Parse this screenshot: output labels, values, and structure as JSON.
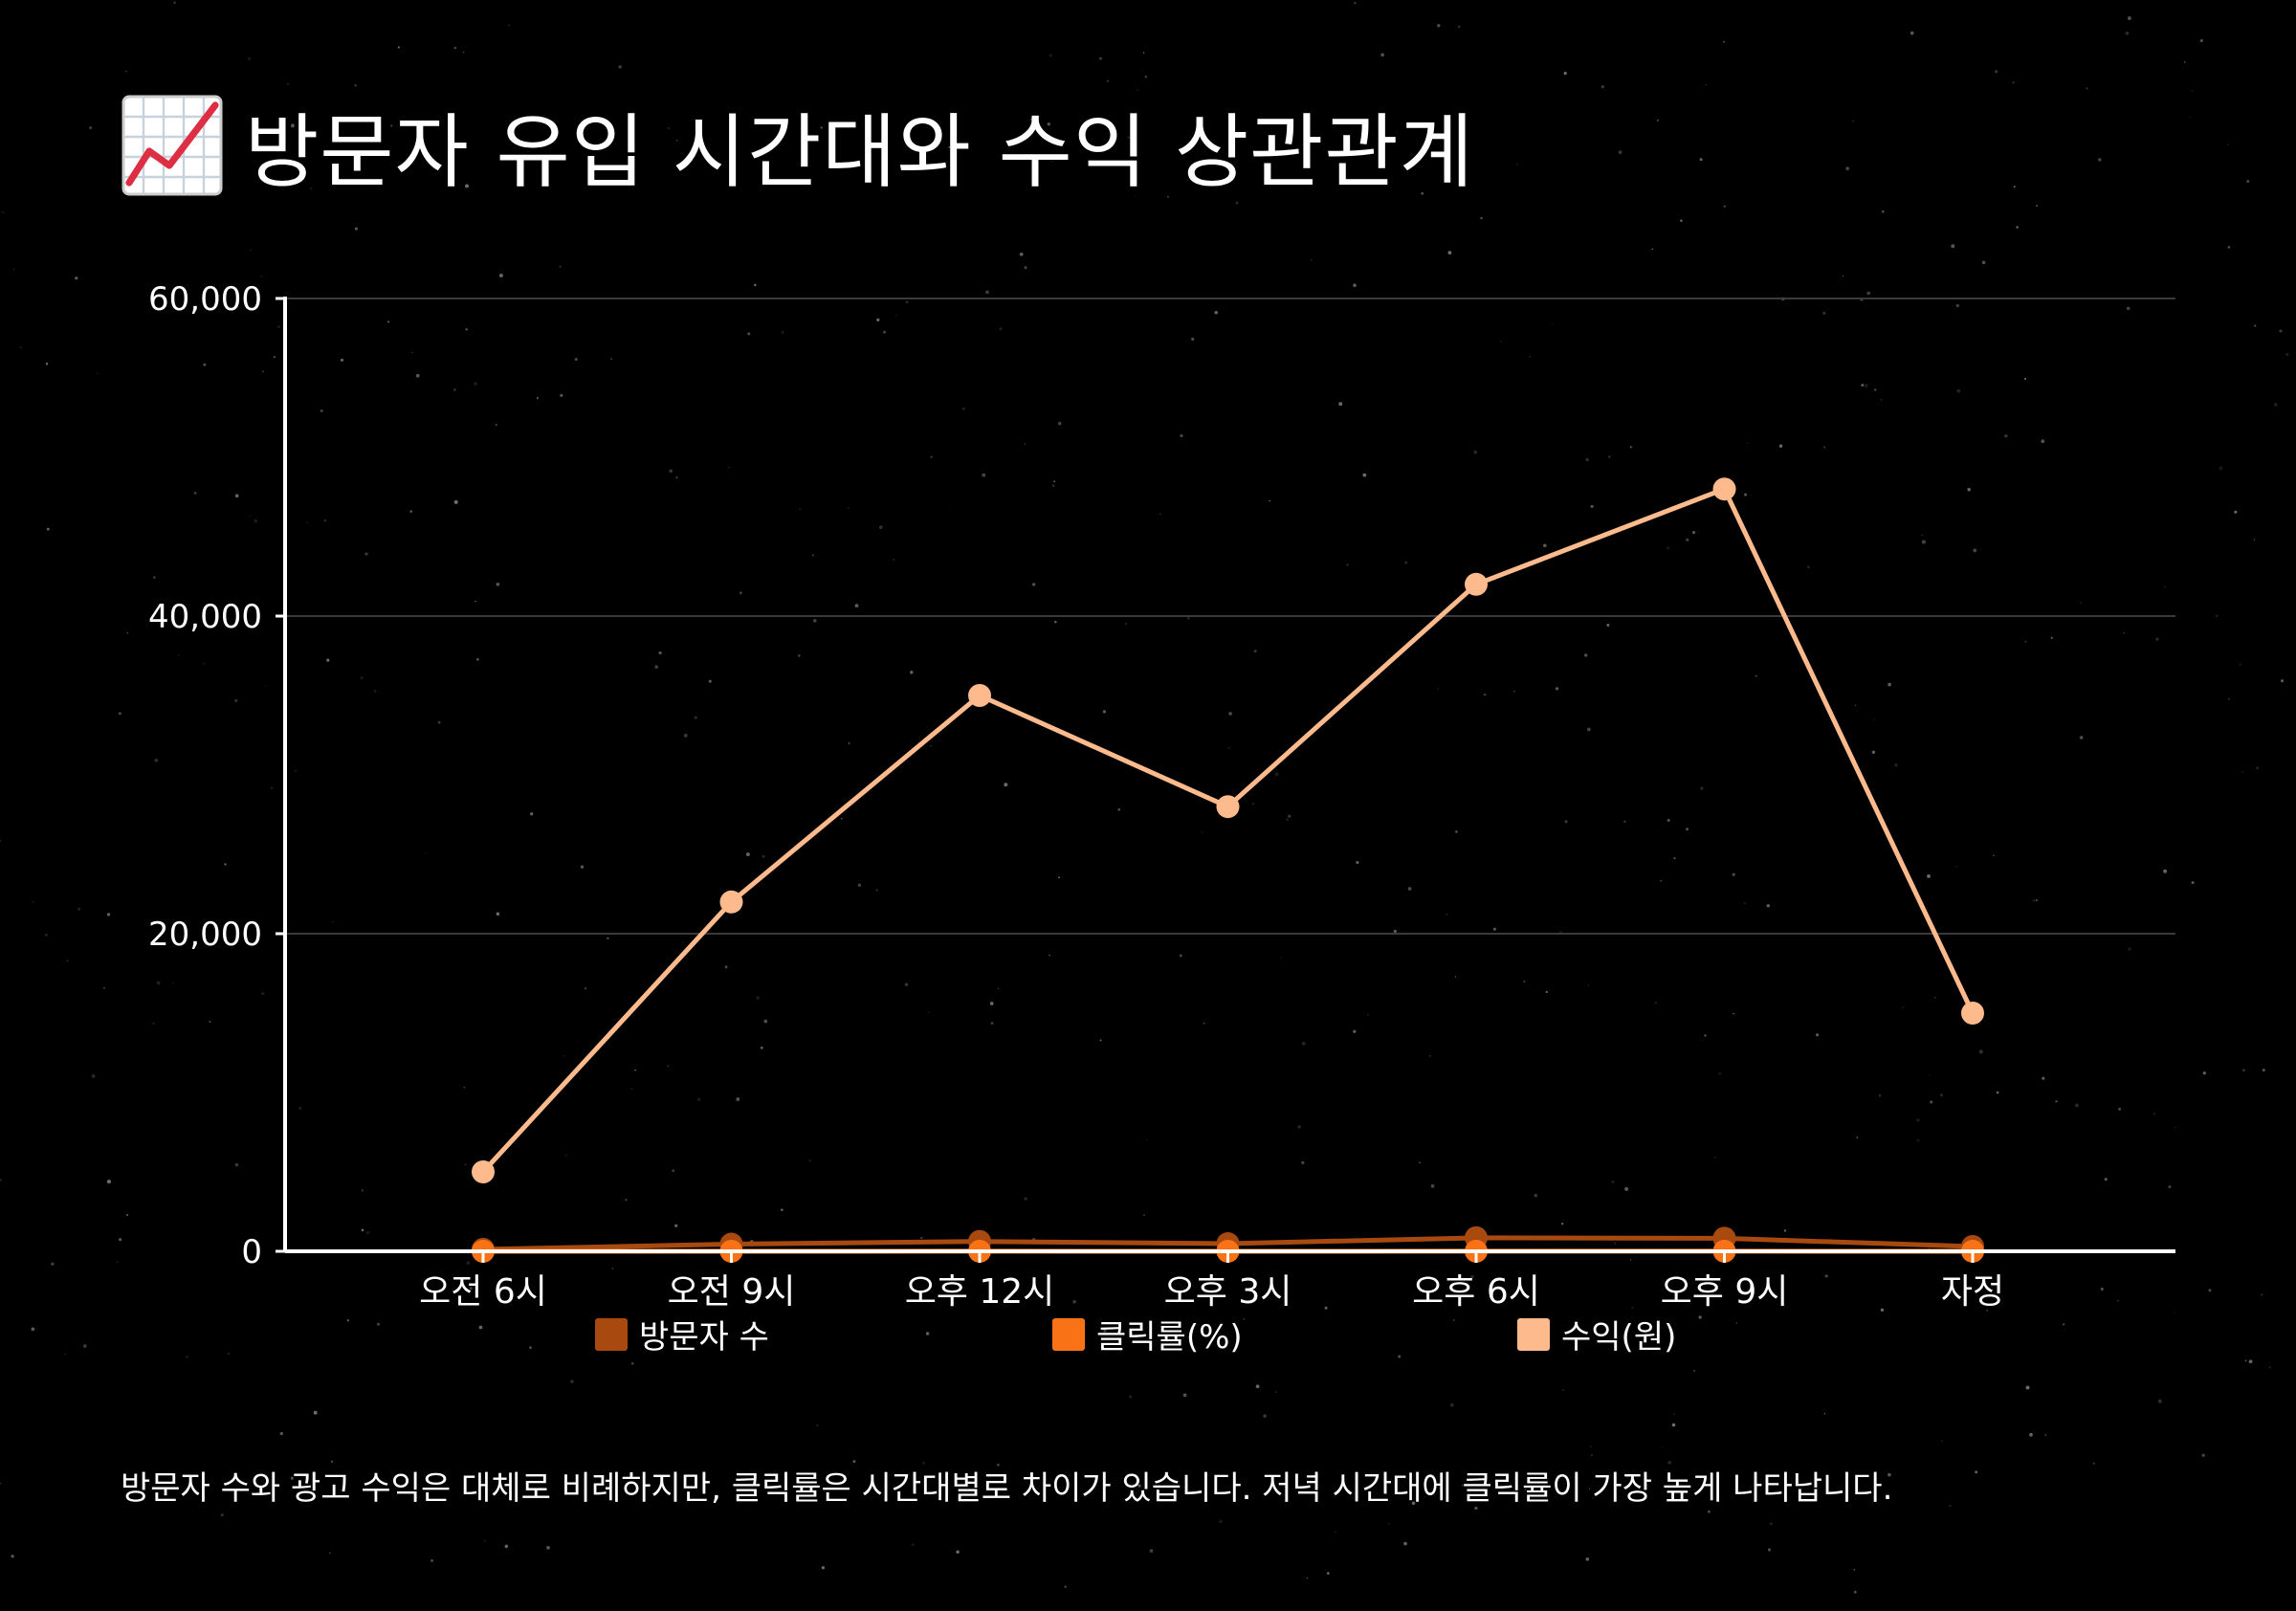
{
  "title": "방문자 유입 시간대와 수익 상관관계",
  "title_icon": "chart-increasing-icon",
  "caption": "방문자 수와 광고 수익은 대체로 비례하지만, 클릭률은 시간대별로 차이가 있습니다. 저녁 시간대에 클릭률이 가장 높게 나타납니다.",
  "chart_data": {
    "type": "line",
    "categories": [
      "오전 6시",
      "오전 9시",
      "오후 12시",
      "오후 3시",
      "오후 6시",
      "오후 9시",
      "자정"
    ],
    "series": [
      {
        "name": "방문자 수",
        "color": "#a84a10",
        "values": [
          120,
          450,
          620,
          480,
          850,
          820,
          300
        ]
      },
      {
        "name": "클릭률(%)",
        "color": "#f97316",
        "values": [
          1.2,
          2.1,
          3.5,
          2.8,
          4.2,
          4.8,
          1.5
        ]
      },
      {
        "name": "수익(원)",
        "color": "#fdba8c",
        "values": [
          5000,
          22000,
          35000,
          28000,
          42000,
          48000,
          15000
        ]
      }
    ],
    "ylim": [
      0,
      60000
    ],
    "yticks": [
      0,
      20000,
      40000,
      60000
    ],
    "ytick_labels": [
      "0",
      "20,000",
      "40,000",
      "60,000"
    ],
    "grid": true,
    "legend_position": "bottom"
  }
}
